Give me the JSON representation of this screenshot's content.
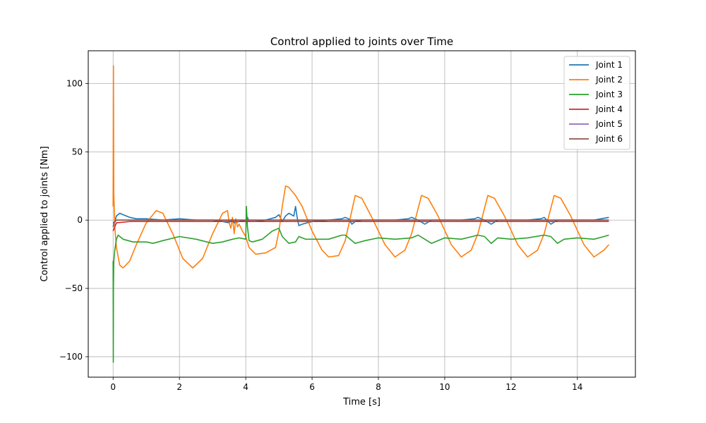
{
  "chart_data": {
    "type": "line",
    "title": "Control applied to joints over Time",
    "xlabel": "Time [s]",
    "ylabel": "Control applied to joints [Nm]",
    "xlim": [
      -0.75,
      15.75
    ],
    "ylim": [
      -115,
      124
    ],
    "xticks": [
      0,
      2,
      4,
      6,
      8,
      10,
      12,
      14
    ],
    "yticks": [
      -100,
      -50,
      0,
      50,
      100
    ],
    "grid": true,
    "legend_position": "top-right",
    "series": [
      {
        "name": "Joint 1",
        "color": "#1f77b4",
        "x": [
          0,
          0.05,
          0.1,
          0.2,
          0.3,
          0.5,
          0.7,
          1.0,
          1.5,
          2.0,
          2.5,
          3.0,
          3.3,
          3.5,
          3.6,
          3.65,
          3.8,
          4.0,
          4.05,
          4.1,
          4.3,
          4.6,
          4.9,
          5.0,
          5.1,
          5.2,
          5.3,
          5.45,
          5.5,
          5.55,
          5.6,
          5.7,
          6.0,
          6.5,
          6.9,
          7.0,
          7.1,
          7.2,
          7.3,
          7.5,
          8.0,
          8.5,
          8.9,
          9.0,
          9.2,
          9.4,
          9.6,
          10.0,
          10.5,
          10.9,
          11.0,
          11.2,
          11.4,
          11.6,
          12.0,
          12.5,
          12.9,
          13.0,
          13.2,
          13.4,
          13.6,
          14.0,
          14.5,
          14.95
        ],
        "y": [
          -5,
          -1,
          3,
          5,
          4,
          2,
          1,
          1,
          0,
          1,
          0,
          0,
          -1,
          -2,
          1,
          -2,
          -1,
          0,
          2,
          -1,
          -1,
          0,
          2,
          4,
          -1,
          3,
          5,
          3,
          10,
          2,
          -4,
          -3,
          -1,
          0,
          1,
          2,
          1,
          -3,
          -1,
          0,
          0,
          0,
          1,
          2,
          0,
          -3,
          0,
          0,
          0,
          1,
          2,
          0,
          -3,
          0,
          0,
          0,
          1,
          2,
          -3,
          0,
          0,
          0,
          0,
          2
        ]
      },
      {
        "name": "Joint 2",
        "color": "#ff7f0e",
        "x": [
          0,
          0.01,
          0.02,
          0.05,
          0.1,
          0.2,
          0.3,
          0.5,
          0.7,
          1.0,
          1.3,
          1.5,
          1.8,
          2.1,
          2.4,
          2.7,
          3.0,
          3.3,
          3.45,
          3.5,
          3.55,
          3.6,
          3.65,
          3.7,
          3.75,
          3.8,
          3.9,
          4.0,
          4.1,
          4.3,
          4.6,
          4.9,
          5.0,
          5.1,
          5.2,
          5.3,
          5.5,
          5.7,
          6.0,
          6.3,
          6.5,
          6.8,
          7.0,
          7.3,
          7.5,
          7.8,
          8.2,
          8.5,
          8.8,
          9.0,
          9.3,
          9.5,
          9.8,
          10.2,
          10.5,
          10.8,
          11.0,
          11.3,
          11.5,
          11.8,
          12.2,
          12.5,
          12.8,
          13.0,
          13.3,
          13.5,
          13.8,
          14.2,
          14.5,
          14.8,
          14.95
        ],
        "y": [
          10,
          113,
          20,
          -5,
          -20,
          -33,
          -35,
          -30,
          -18,
          -2,
          7,
          5,
          -10,
          -28,
          -35,
          -28,
          -10,
          5,
          7,
          -2,
          -6,
          2,
          -10,
          1,
          -5,
          -3,
          -8,
          -12,
          -20,
          -25,
          -24,
          -20,
          -8,
          10,
          25,
          24,
          18,
          10,
          -8,
          -22,
          -27,
          -26,
          -15,
          18,
          16,
          2,
          -18,
          -27,
          -22,
          -10,
          18,
          16,
          3,
          -18,
          -27,
          -22,
          -10,
          18,
          16,
          3,
          -18,
          -27,
          -22,
          -10,
          18,
          16,
          3,
          -18,
          -27,
          -22,
          -18
        ]
      },
      {
        "name": "Joint 3",
        "color": "#2ca02c",
        "x": [
          0,
          0.005,
          0.01,
          0.02,
          0.05,
          0.1,
          0.15,
          0.3,
          0.6,
          1.0,
          1.2,
          1.5,
          2.0,
          2.5,
          3.0,
          3.3,
          3.6,
          3.8,
          4.0,
          4.02,
          4.05,
          4.1,
          4.2,
          4.5,
          4.8,
          5.0,
          5.1,
          5.3,
          5.5,
          5.6,
          5.7,
          5.8,
          6.0,
          6.5,
          6.9,
          7.0,
          7.1,
          7.3,
          7.6,
          8.0,
          8.5,
          9.0,
          9.2,
          9.4,
          9.6,
          10.0,
          10.5,
          11.0,
          11.2,
          11.4,
          11.6,
          12.0,
          12.5,
          13.0,
          13.2,
          13.4,
          13.6,
          14.0,
          14.5,
          14.8,
          14.95
        ],
        "y": [
          -30,
          -104,
          -50,
          -30,
          -22,
          -14,
          -11,
          -14,
          -16,
          -16,
          -17,
          -15,
          -12,
          -14,
          -17,
          -16,
          -14,
          -13,
          -14,
          10,
          -5,
          -15,
          -16,
          -14,
          -8,
          -6,
          -12,
          -17,
          -16,
          -12,
          -13,
          -14,
          -14,
          -14,
          -11,
          -11,
          -13,
          -17,
          -15,
          -13,
          -14,
          -13,
          -11,
          -14,
          -17,
          -13,
          -14,
          -11,
          -12,
          -17,
          -13,
          -14,
          -13,
          -11,
          -12,
          -17,
          -14,
          -13,
          -14,
          -12,
          -11
        ]
      },
      {
        "name": "Joint 4",
        "color": "#d62728",
        "x": [
          0,
          0.1,
          0.5,
          1.0,
          2.0,
          3.0,
          4.0,
          5.0,
          6.0,
          7.0,
          8.0,
          9.0,
          10.0,
          11.0,
          12.0,
          13.0,
          14.0,
          14.95
        ],
        "y": [
          -8,
          -2,
          -1,
          -1,
          -1,
          -1,
          -1,
          -1,
          -1,
          -1,
          -1,
          -1,
          -1,
          -1,
          -1,
          -1,
          -1,
          -1
        ]
      },
      {
        "name": "Joint 5",
        "color": "#9467bd",
        "x": [
          0,
          0.1,
          0.5,
          1.0,
          2.0,
          3.0,
          4.0,
          5.0,
          6.0,
          7.0,
          8.0,
          9.0,
          10.0,
          11.0,
          12.0,
          13.0,
          14.0,
          14.95
        ],
        "y": [
          -3,
          0,
          0,
          0,
          0,
          0,
          0,
          0,
          0,
          0,
          0,
          0,
          0,
          0,
          0,
          0,
          0,
          0
        ]
      },
      {
        "name": "Joint 6",
        "color": "#8c564b",
        "x": [
          0,
          0.1,
          0.5,
          1.0,
          2.0,
          3.0,
          4.0,
          5.0,
          6.0,
          7.0,
          8.0,
          9.0,
          10.0,
          11.0,
          12.0,
          13.0,
          14.0,
          14.95
        ],
        "y": [
          -2,
          0,
          0,
          0,
          0,
          0,
          0,
          0,
          0,
          0,
          0,
          0,
          0,
          0,
          0,
          0,
          0,
          0
        ]
      }
    ]
  }
}
